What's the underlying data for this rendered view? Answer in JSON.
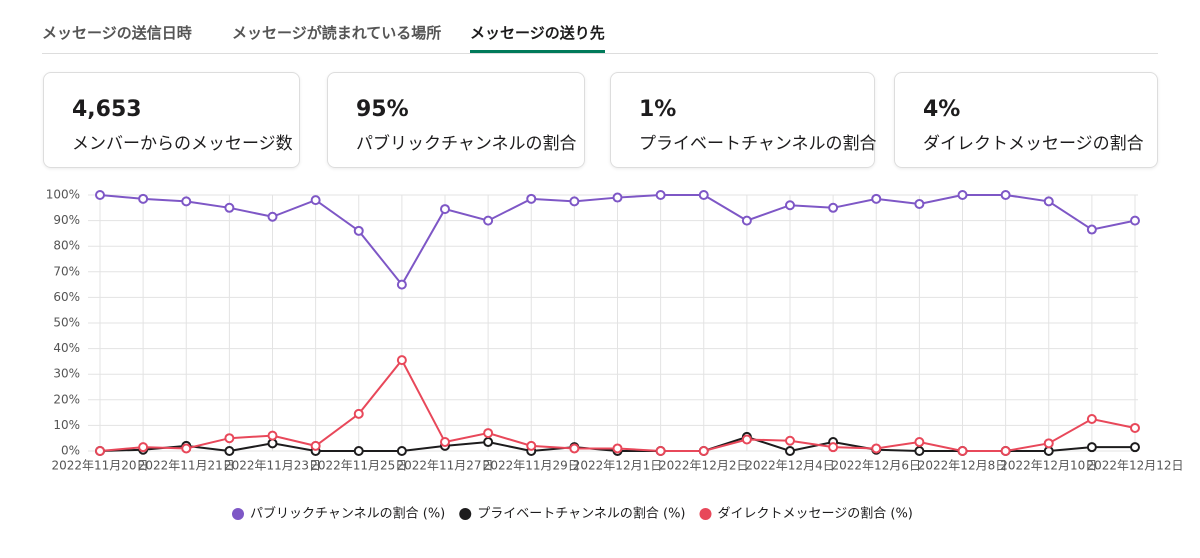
{
  "tabs": [
    "メッセージの送信日時",
    "メッセージが読まれている場所",
    "メッセージの送り先"
  ],
  "active_tab": 2,
  "cards": [
    {
      "value": "4,653",
      "label": "メンバーからのメッセージ数"
    },
    {
      "value": "95%",
      "label": "パブリックチャンネルの割合"
    },
    {
      "value": "1%",
      "label": "プライベートチャンネルの割合"
    },
    {
      "value": "4%",
      "label": "ダイレクトメッセージの割合"
    }
  ],
  "chart_data": {
    "type": "line",
    "categories": [
      "2022年11月20日",
      null,
      "2022年11月21日",
      null,
      "2022年11月23日",
      null,
      "2022年11月25日",
      null,
      "2022年11月27日",
      null,
      "2022年11月29日",
      null,
      "2022年12月1日",
      null,
      "2022年12月2日",
      null,
      "2022年12月4日",
      null,
      "2022年12月6日",
      null,
      "2022年12月8日",
      null,
      "2022年12月10日",
      null,
      "2022年12月12日"
    ],
    "ylim": [
      0,
      100
    ],
    "yticks": [
      {
        "value": 0,
        "label": "0%"
      },
      {
        "value": 10,
        "label": "10%"
      },
      {
        "value": 20,
        "label": "20%"
      },
      {
        "value": 30,
        "label": "30%"
      },
      {
        "value": 40,
        "label": "40%"
      },
      {
        "value": 50,
        "label": "50%"
      },
      {
        "value": 60,
        "label": "60%"
      },
      {
        "value": 70,
        "label": "70%"
      },
      {
        "value": 80,
        "label": "80%"
      },
      {
        "value": 90,
        "label": "90%"
      },
      {
        "value": 100,
        "label": "100%"
      }
    ],
    "grid": true,
    "legend": "bottom",
    "series": [
      {
        "name": "パブリックチャンネルの割合 (%)",
        "color": "#7e57c6",
        "values": [
          100,
          98.5,
          97.5,
          95,
          91.5,
          98,
          86,
          65,
          94.5,
          90,
          98.5,
          97.5,
          99,
          100,
          100,
          90,
          96,
          95,
          98.5,
          96.5,
          100,
          100,
          97.5,
          86.5,
          90
        ]
      },
      {
        "name": "プライベートチャンネルの割合 (%)",
        "color": "#1d1c1d",
        "values": [
          0,
          0.5,
          2,
          0,
          3,
          0,
          0,
          0,
          2,
          3.5,
          0,
          1.5,
          0,
          0,
          0,
          5.5,
          0,
          3.5,
          0.5,
          0,
          0,
          0,
          0,
          1.5,
          1.5
        ]
      },
      {
        "name": "ダイレクトメッセージの割合 (%)",
        "color": "#e8485a",
        "values": [
          0,
          1.5,
          1,
          5,
          6,
          2,
          14.5,
          35.5,
          3.5,
          7,
          2,
          1,
          1,
          0,
          0,
          4.5,
          4,
          1.5,
          1,
          3.5,
          0,
          0,
          3,
          12.5,
          9
        ]
      }
    ]
  }
}
